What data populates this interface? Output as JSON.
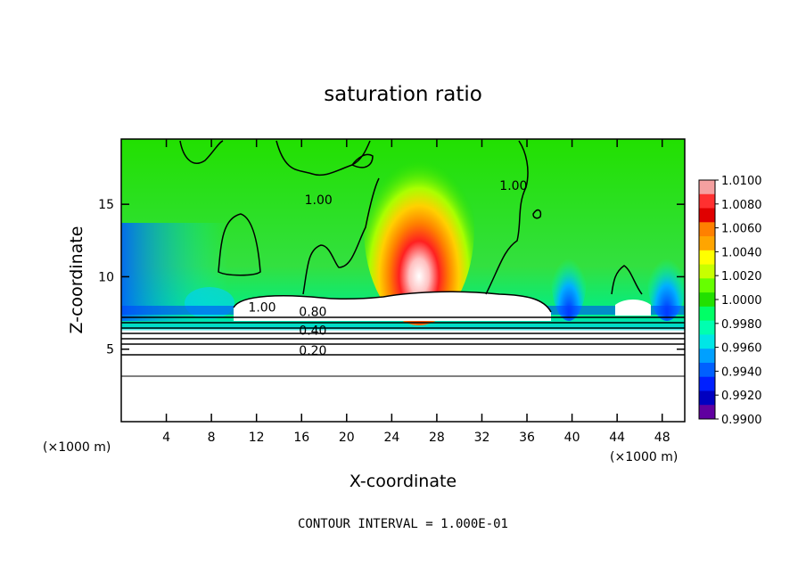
{
  "chart_data": {
    "type": "heatmap",
    "title": "saturation ratio",
    "xlabel": "X-coordinate",
    "ylabel": "Z-coordinate",
    "x_unit": "(×1000 m)",
    "x_unit_right": "(×1000 m)",
    "xlim": [
      0,
      50
    ],
    "ylim": [
      0,
      19.5
    ],
    "x_ticks": [
      4,
      8,
      12,
      16,
      20,
      24,
      28,
      32,
      36,
      40,
      44,
      48
    ],
    "y_ticks": [
      5,
      10,
      15
    ],
    "colorbar": {
      "min": 0.99,
      "max": 1.01,
      "labels": [
        "1.0100",
        "1.0080",
        "1.0060",
        "1.0040",
        "1.0020",
        "1.0000",
        "0.9980",
        "0.9960",
        "0.9940",
        "0.9920",
        "0.9900"
      ],
      "colors": [
        "#f5a0a0",
        "#ff3030",
        "#e00000",
        "#ff8000",
        "#ffa500",
        "#ffff00",
        "#c8ff00",
        "#66ff00",
        "#22e000",
        "#00ff66",
        "#00ffb0",
        "#00e6e6",
        "#00a0ff",
        "#0060ff",
        "#0020ff",
        "#0000c0",
        "#6000a0"
      ]
    },
    "contour_labels": [
      {
        "text": "1.00",
        "x": 17.5,
        "y": 15.0
      },
      {
        "text": "1.00",
        "x": 34.8,
        "y": 16.0
      },
      {
        "text": "1.00",
        "x": 12.5,
        "y": 7.6
      },
      {
        "text": "0.80",
        "x": 17.0,
        "y": 7.3
      },
      {
        "text": "0.40",
        "x": 17.0,
        "y": 6.0
      },
      {
        "text": "0.20",
        "x": 17.0,
        "y": 4.6
      }
    ],
    "grid": false
  },
  "footer": {
    "contour_interval": "CONTOUR INTERVAL = 1.000E-01"
  }
}
